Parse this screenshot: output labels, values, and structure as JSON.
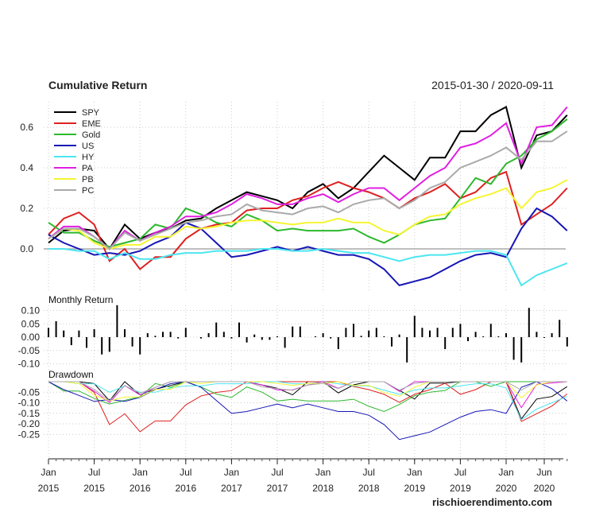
{
  "chart_data": [
    {
      "type": "line",
      "title": "Cumulative Return",
      "subtitle": "2015-01-30 / 2020-09-11",
      "ylim": [
        -0.22,
        0.72
      ],
      "yticks": [
        "0.0",
        "0.2",
        "0.4",
        "0.6"
      ],
      "ytick_values": [
        0.0,
        0.2,
        0.4,
        0.6
      ],
      "grid": true,
      "legend": "top-left",
      "x": [
        "2015-01",
        "2015-03",
        "2015-05",
        "2015-07",
        "2015-09",
        "2015-11",
        "2016-01",
        "2016-03",
        "2016-05",
        "2016-07",
        "2016-09",
        "2016-11",
        "2017-01",
        "2017-03",
        "2017-05",
        "2017-07",
        "2017-09",
        "2017-11",
        "2018-01",
        "2018-03",
        "2018-05",
        "2018-07",
        "2018-09",
        "2018-11",
        "2019-01",
        "2019-03",
        "2019-05",
        "2019-07",
        "2019-09",
        "2019-11",
        "2020-01",
        "2020-03",
        "2020-05",
        "2020-07",
        "2020-09"
      ],
      "series": [
        {
          "name": "SPY",
          "color": "#000000",
          "values": [
            0.03,
            0.09,
            0.1,
            0.09,
            0.0,
            0.12,
            0.05,
            0.08,
            0.1,
            0.14,
            0.15,
            0.2,
            0.24,
            0.28,
            0.26,
            0.24,
            0.2,
            0.28,
            0.32,
            0.25,
            0.3,
            0.38,
            0.46,
            0.4,
            0.34,
            0.45,
            0.45,
            0.58,
            0.58,
            0.66,
            0.7,
            0.4,
            0.56,
            0.58,
            0.66
          ]
        },
        {
          "name": "EME",
          "color": "#DF2020",
          "values": [
            0.07,
            0.15,
            0.18,
            0.12,
            -0.06,
            0.0,
            -0.1,
            -0.04,
            -0.04,
            0.05,
            0.1,
            0.12,
            0.13,
            0.19,
            0.2,
            0.2,
            0.24,
            0.26,
            0.3,
            0.33,
            0.3,
            0.28,
            0.25,
            0.2,
            0.25,
            0.28,
            0.32,
            0.25,
            0.28,
            0.35,
            0.38,
            0.12,
            0.17,
            0.22,
            0.3
          ]
        },
        {
          "name": "Gold",
          "color": "#2DB82D",
          "values": [
            0.13,
            0.08,
            0.08,
            0.04,
            0.01,
            0.03,
            0.05,
            0.12,
            0.1,
            0.2,
            0.17,
            0.13,
            0.11,
            0.17,
            0.14,
            0.09,
            0.1,
            0.09,
            0.09,
            0.09,
            0.1,
            0.06,
            0.03,
            0.07,
            0.12,
            0.14,
            0.15,
            0.25,
            0.35,
            0.32,
            0.42,
            0.46,
            0.54,
            0.58,
            0.64
          ]
        },
        {
          "name": "US",
          "color": "#1515B5",
          "values": [
            0.07,
            0.03,
            0.0,
            -0.03,
            -0.02,
            -0.03,
            -0.01,
            0.03,
            0.06,
            0.13,
            0.1,
            0.03,
            -0.04,
            -0.03,
            -0.01,
            0.01,
            -0.01,
            0.01,
            -0.01,
            -0.03,
            -0.03,
            -0.05,
            -0.1,
            -0.18,
            -0.16,
            -0.14,
            -0.1,
            -0.06,
            -0.03,
            -0.02,
            -0.04,
            0.1,
            0.2,
            0.16,
            0.09
          ]
        },
        {
          "name": "HY",
          "color": "#4CE6F0",
          "values": [
            0.0,
            0.0,
            -0.01,
            -0.01,
            -0.05,
            -0.02,
            -0.05,
            -0.05,
            -0.03,
            -0.02,
            -0.02,
            -0.01,
            -0.01,
            -0.01,
            0.0,
            0.0,
            -0.01,
            -0.01,
            0.0,
            -0.01,
            -0.02,
            -0.02,
            -0.04,
            -0.06,
            -0.04,
            -0.03,
            -0.03,
            -0.02,
            -0.01,
            -0.01,
            -0.03,
            -0.18,
            -0.13,
            -0.1,
            -0.07
          ]
        },
        {
          "name": "PA",
          "color": "#E020E0",
          "values": [
            0.05,
            0.11,
            0.11,
            0.06,
            0.0,
            0.09,
            0.04,
            0.08,
            0.11,
            0.16,
            0.16,
            0.18,
            0.22,
            0.27,
            0.25,
            0.22,
            0.22,
            0.25,
            0.27,
            0.23,
            0.27,
            0.3,
            0.3,
            0.24,
            0.3,
            0.36,
            0.4,
            0.5,
            0.52,
            0.56,
            0.62,
            0.42,
            0.6,
            0.61,
            0.7
          ]
        },
        {
          "name": "PB",
          "color": "#F5F532",
          "values": [
            0.05,
            0.1,
            0.09,
            0.03,
            0.0,
            0.02,
            0.02,
            0.06,
            0.06,
            0.11,
            0.1,
            0.11,
            0.13,
            0.14,
            0.14,
            0.13,
            0.12,
            0.13,
            0.13,
            0.15,
            0.13,
            0.13,
            0.09,
            0.07,
            0.12,
            0.16,
            0.17,
            0.22,
            0.25,
            0.27,
            0.3,
            0.2,
            0.28,
            0.3,
            0.34
          ]
        },
        {
          "name": "PC",
          "color": "#AAAAAA",
          "values": [
            0.05,
            0.1,
            0.1,
            0.06,
            0.0,
            0.08,
            0.04,
            0.07,
            0.1,
            0.13,
            0.14,
            0.16,
            0.17,
            0.22,
            0.19,
            0.18,
            0.17,
            0.2,
            0.21,
            0.18,
            0.22,
            0.24,
            0.25,
            0.2,
            0.24,
            0.3,
            0.33,
            0.4,
            0.43,
            0.46,
            0.5,
            0.44,
            0.53,
            0.53,
            0.58
          ]
        }
      ]
    },
    {
      "type": "bar",
      "title": "Monthly Return",
      "ylim": [
        -0.12,
        0.14
      ],
      "yticks": [
        "0.10",
        "0.05",
        "0.00",
        "-0.05",
        "-0.10"
      ],
      "ytick_values": [
        0.1,
        0.05,
        0.0,
        -0.05,
        -0.1
      ],
      "grid": true,
      "start": "2015-01",
      "values": [
        0.035,
        0.06,
        0.025,
        -0.03,
        0.025,
        -0.04,
        0.03,
        -0.065,
        -0.055,
        0.12,
        0.03,
        -0.035,
        -0.065,
        0.015,
        0.005,
        0.02,
        0.02,
        -0.005,
        0.035,
        0.0,
        -0.005,
        0.015,
        0.055,
        0.02,
        -0.005,
        0.055,
        -0.02,
        0.01,
        -0.01,
        -0.01,
        0.003,
        -0.04,
        0.04,
        0.04,
        0.0,
        0.003,
        0.015,
        -0.005,
        -0.045,
        0.035,
        0.05,
        0.005,
        0.025,
        0.035,
        0.003,
        -0.035,
        0.01,
        -0.095,
        0.08,
        0.035,
        0.025,
        0.035,
        -0.045,
        0.035,
        0.05,
        -0.015,
        0.02,
        0.003,
        0.05,
        0.003,
        0.015,
        -0.085,
        -0.095,
        0.11,
        0.02,
        -0.003,
        0.015,
        0.065,
        -0.035
      ],
      "color": "#000000"
    },
    {
      "type": "line",
      "title": "Drawdown",
      "ylim": [
        -0.35,
        0.0
      ],
      "yticks": [
        "-0.05",
        "-0.10",
        "-0.15",
        "-0.20",
        "-0.25"
      ],
      "ytick_values": [
        -0.05,
        -0.1,
        -0.15,
        -0.2,
        -0.25
      ],
      "grid": true,
      "derived_from": "Cumulative Return"
    }
  ],
  "x_axis": {
    "ticks": [
      {
        "date": "2015-01",
        "month": "Jan",
        "year": "2015"
      },
      {
        "date": "2015-07",
        "month": "Jul",
        "year": "2015"
      },
      {
        "date": "2016-01",
        "month": "Jan",
        "year": "2016"
      },
      {
        "date": "2016-07",
        "month": "Jul",
        "year": "2016"
      },
      {
        "date": "2017-01",
        "month": "Jan",
        "year": "2017"
      },
      {
        "date": "2017-07",
        "month": "Jul",
        "year": "2017"
      },
      {
        "date": "2018-01",
        "month": "Jan",
        "year": "2018"
      },
      {
        "date": "2018-07",
        "month": "Jul",
        "year": "2018"
      },
      {
        "date": "2019-01",
        "month": "Jan",
        "year": "2019"
      },
      {
        "date": "2019-07",
        "month": "Jul",
        "year": "2019"
      },
      {
        "date": "2020-01",
        "month": "Jan",
        "year": "2020"
      },
      {
        "date": "2020-06",
        "month": "Jun",
        "year": "2020"
      }
    ]
  },
  "watermark": "rischioerendimento.com"
}
